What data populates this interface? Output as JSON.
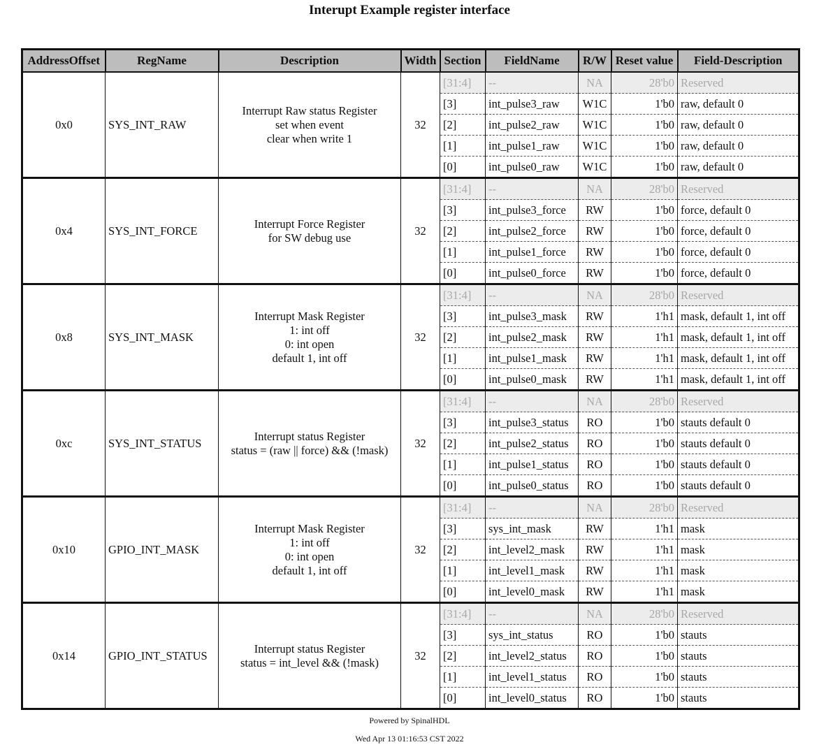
{
  "title": "Interupt Example register interface",
  "headers": [
    "AddressOffset",
    "RegName",
    "Description",
    "Width",
    "Section",
    "FieldName",
    "R/W",
    "Reset value",
    "Field-Description"
  ],
  "registers": [
    {
      "offset": "0x0",
      "name": "SYS_INT_RAW",
      "description": [
        "Interrupt Raw status Register",
        "set when event",
        "clear when write 1"
      ],
      "width": "32",
      "fields": [
        {
          "section": "[31:4]",
          "name": "--",
          "rw": "NA",
          "reset": "28'b0",
          "desc": "Reserved",
          "reserved": true
        },
        {
          "section": "[3]",
          "name": "int_pulse3_raw",
          "rw": "W1C",
          "reset": "1'b0",
          "desc": "raw, default 0"
        },
        {
          "section": "[2]",
          "name": "int_pulse2_raw",
          "rw": "W1C",
          "reset": "1'b0",
          "desc": "raw, default 0"
        },
        {
          "section": "[1]",
          "name": "int_pulse1_raw",
          "rw": "W1C",
          "reset": "1'b0",
          "desc": "raw, default 0"
        },
        {
          "section": "[0]",
          "name": "int_pulse0_raw",
          "rw": "W1C",
          "reset": "1'b0",
          "desc": "raw, default 0"
        }
      ]
    },
    {
      "offset": "0x4",
      "name": "SYS_INT_FORCE",
      "description": [
        "Interrupt Force Register",
        "for SW debug use"
      ],
      "width": "32",
      "fields": [
        {
          "section": "[31:4]",
          "name": "--",
          "rw": "NA",
          "reset": "28'b0",
          "desc": "Reserved",
          "reserved": true
        },
        {
          "section": "[3]",
          "name": "int_pulse3_force",
          "rw": "RW",
          "reset": "1'b0",
          "desc": "force, default 0"
        },
        {
          "section": "[2]",
          "name": "int_pulse2_force",
          "rw": "RW",
          "reset": "1'b0",
          "desc": "force, default 0"
        },
        {
          "section": "[1]",
          "name": "int_pulse1_force",
          "rw": "RW",
          "reset": "1'b0",
          "desc": "force, default 0"
        },
        {
          "section": "[0]",
          "name": "int_pulse0_force",
          "rw": "RW",
          "reset": "1'b0",
          "desc": "force, default 0"
        }
      ]
    },
    {
      "offset": "0x8",
      "name": "SYS_INT_MASK",
      "description": [
        "Interrupt Mask Register",
        "1: int off",
        "0: int open",
        "default 1, int off"
      ],
      "width": "32",
      "fields": [
        {
          "section": "[31:4]",
          "name": "--",
          "rw": "NA",
          "reset": "28'b0",
          "desc": "Reserved",
          "reserved": true
        },
        {
          "section": "[3]",
          "name": "int_pulse3_mask",
          "rw": "RW",
          "reset": "1'h1",
          "desc": "mask, default 1, int off"
        },
        {
          "section": "[2]",
          "name": "int_pulse2_mask",
          "rw": "RW",
          "reset": "1'h1",
          "desc": "mask, default 1, int off"
        },
        {
          "section": "[1]",
          "name": "int_pulse1_mask",
          "rw": "RW",
          "reset": "1'h1",
          "desc": "mask, default 1, int off"
        },
        {
          "section": "[0]",
          "name": "int_pulse0_mask",
          "rw": "RW",
          "reset": "1'h1",
          "desc": "mask, default 1, int off"
        }
      ]
    },
    {
      "offset": "0xc",
      "name": "SYS_INT_STATUS",
      "description": [
        "Interrupt status Register",
        "status = (raw || force) && (!mask)"
      ],
      "width": "32",
      "fields": [
        {
          "section": "[31:4]",
          "name": "--",
          "rw": "NA",
          "reset": "28'b0",
          "desc": "Reserved",
          "reserved": true
        },
        {
          "section": "[3]",
          "name": "int_pulse3_status",
          "rw": "RO",
          "reset": "1'b0",
          "desc": "stauts default 0"
        },
        {
          "section": "[2]",
          "name": "int_pulse2_status",
          "rw": "RO",
          "reset": "1'b0",
          "desc": "stauts default 0"
        },
        {
          "section": "[1]",
          "name": "int_pulse1_status",
          "rw": "RO",
          "reset": "1'b0",
          "desc": "stauts default 0"
        },
        {
          "section": "[0]",
          "name": "int_pulse0_status",
          "rw": "RO",
          "reset": "1'b0",
          "desc": "stauts default 0"
        }
      ]
    },
    {
      "offset": "0x10",
      "name": "GPIO_INT_MASK",
      "description": [
        "Interrupt Mask Register",
        "1: int off",
        "0: int open",
        "default 1, int off"
      ],
      "width": "32",
      "fields": [
        {
          "section": "[31:4]",
          "name": "--",
          "rw": "NA",
          "reset": "28'b0",
          "desc": "Reserved",
          "reserved": true
        },
        {
          "section": "[3]",
          "name": "sys_int_mask",
          "rw": "RW",
          "reset": "1'h1",
          "desc": "mask"
        },
        {
          "section": "[2]",
          "name": "int_level2_mask",
          "rw": "RW",
          "reset": "1'h1",
          "desc": "mask"
        },
        {
          "section": "[1]",
          "name": "int_level1_mask",
          "rw": "RW",
          "reset": "1'h1",
          "desc": "mask"
        },
        {
          "section": "[0]",
          "name": "int_level0_mask",
          "rw": "RW",
          "reset": "1'h1",
          "desc": "mask"
        }
      ]
    },
    {
      "offset": "0x14",
      "name": "GPIO_INT_STATUS",
      "description": [
        "Interrupt status Register",
        "status = int_level && (!mask)"
      ],
      "width": "32",
      "fields": [
        {
          "section": "[31:4]",
          "name": "--",
          "rw": "NA",
          "reset": "28'b0",
          "desc": "Reserved",
          "reserved": true
        },
        {
          "section": "[3]",
          "name": "sys_int_status",
          "rw": "RO",
          "reset": "1'b0",
          "desc": "stauts"
        },
        {
          "section": "[2]",
          "name": "int_level2_status",
          "rw": "RO",
          "reset": "1'b0",
          "desc": "stauts"
        },
        {
          "section": "[1]",
          "name": "int_level1_status",
          "rw": "RO",
          "reset": "1'b0",
          "desc": "stauts"
        },
        {
          "section": "[0]",
          "name": "int_level0_status",
          "rw": "RO",
          "reset": "1'b0",
          "desc": "stauts"
        }
      ]
    }
  ],
  "footer": {
    "powered_by": "Powered by SpinalHDL",
    "timestamp": "Wed Apr 13 01:16:53 CST 2022"
  },
  "colors": {
    "header_bg": "#bdbdbd",
    "reserved_bg": "#ececec",
    "reserved_text": "#a8a8a8"
  }
}
